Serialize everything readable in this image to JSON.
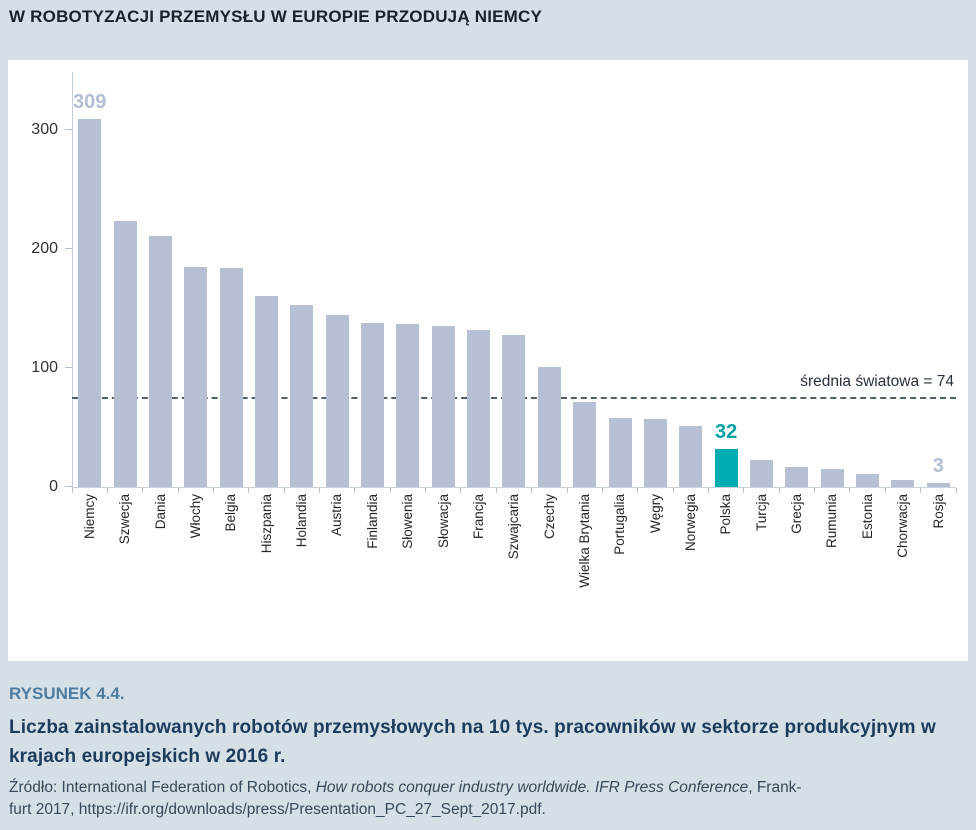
{
  "page": {
    "title": "W ROBOTYZACJI PRZEMYSŁU W EUROPIE PRZODUJĄ NIEMCY"
  },
  "chart_data": {
    "type": "bar",
    "title": "W ROBOTYZACJI PRZEMYSŁU W EUROPIE PRZODUJĄ NIEMCY",
    "categories": [
      "Niemcy",
      "Szwecja",
      "Dania",
      "Włochy",
      "Belgia",
      "Hiszpania",
      "Holandia",
      "Austria",
      "Finlandia",
      "Słowenia",
      "Słowacja",
      "Francja",
      "Szwajcaria",
      "Czechy",
      "Wielka Brytania",
      "Portugalia",
      "Węgry",
      "Norwegia",
      "Polska",
      "Turcja",
      "Grecja",
      "Rumunia",
      "Estonia",
      "Chorwacja",
      "Rosja"
    ],
    "values": [
      309,
      223,
      211,
      185,
      184,
      160,
      153,
      144,
      138,
      137,
      135,
      132,
      128,
      101,
      71,
      58,
      57,
      51,
      32,
      23,
      17,
      15,
      11,
      6,
      3
    ],
    "xlabel": "",
    "ylabel": "",
    "ylim": [
      0,
      330
    ],
    "y_ticks": [
      0,
      100,
      200,
      300
    ],
    "grid": false,
    "legend": "none",
    "highlight_category": "Polska",
    "value_labels": [
      {
        "category": "Niemcy",
        "text": "309"
      },
      {
        "category": "Polska",
        "text": "32"
      },
      {
        "category": "Rosja",
        "text": "3"
      }
    ],
    "average_line": {
      "value": 74,
      "label": "średnia światowa = 74"
    },
    "colors": {
      "bar": "#b7c0d3",
      "highlight": "#00aeb2",
      "value_label": "#b3bed2",
      "highlight_value_label": "#00a2a6",
      "axis": "#c4cdda",
      "tick": "#b9c3d2",
      "tick_label": "#333333",
      "average_line": "#4f5f6e",
      "average_label": "#25313d"
    }
  },
  "caption": {
    "figure_label": "RYSUNEK 4.4.",
    "text": "Liczba zainstalowanych robotów przemysłowych na 10 tys. pracowników w sektorze produkcyjnym w krajach europejskich w 2016 r.",
    "source_prefix": "Źródło: International Federation of Robotics, ",
    "source_italic": "How robots conquer industry worldwide. IFR Press Conference",
    "source_line1_end": ", Frank-",
    "source_line2": "furt 2017, https://ifr.org/downloads/press/Presentation_PC_27_Sept_2017.pdf."
  }
}
